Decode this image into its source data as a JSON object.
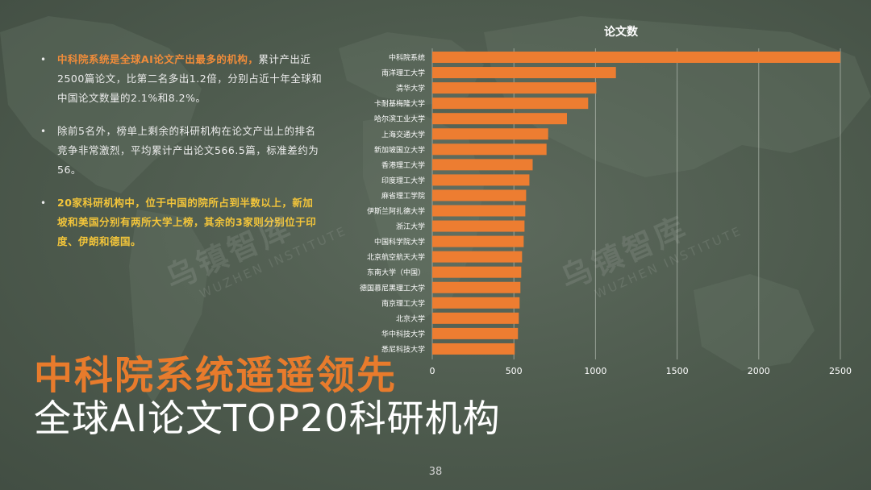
{
  "bullets": [
    {
      "highlight": "中科院系统是全球AI论文产出最多的机构，",
      "text": "累计产出近2500篇论文，比第二名多出1.2倍，分别占近十年全球和中国论文数量的2.1%和8.2%。"
    },
    {
      "highlight": "",
      "text": "除前5名外，榜单上剩余的科研机构在论文产出上的排名竞争非常激烈，平均累计产出论文566.5篇，标准差约为56。"
    },
    {
      "highlight": "20家科研机构中，位于中国的院所占到半数以上，新加坡和美国分别有两所大学上榜，其余的3家则分别位于印度、伊朗和德国。",
      "text": ""
    }
  ],
  "watermark": {
    "cn": "乌镇智库",
    "en": "WUZHEN INSTITUTE"
  },
  "headline": "中科院系统遥遥领先",
  "subtitle": "全球AI论文TOP20科研机构",
  "page_number": "38",
  "colors": {
    "accent": "#e87b2c",
    "bar": "#ed7d31",
    "highlight_text": "#f3c53a",
    "background": "#4d5a4d"
  },
  "chart_data": {
    "type": "bar",
    "orientation": "horizontal",
    "title": "论文数",
    "categories": [
      "中科院系统",
      "南洋理工大学",
      "清华大学",
      "卡耐基梅隆大学",
      "哈尔滨工业大学",
      "上海交通大学",
      "新加坡国立大学",
      "香港理工大学",
      "印度理工大学",
      "麻省理工学院",
      "伊斯兰阿扎德大学",
      "浙江大学",
      "中国科学院大学",
      "北京航空航天大学",
      "东南大学（中国）",
      "德国慕尼黑理工大学",
      "南京理工大学",
      "北京大学",
      "华中科技大学",
      "悉尼科技大学"
    ],
    "values": [
      2500,
      1125,
      1005,
      955,
      825,
      710,
      700,
      615,
      595,
      575,
      570,
      565,
      560,
      550,
      545,
      540,
      535,
      530,
      525,
      505
    ],
    "xlim": [
      0,
      2500
    ],
    "xticks": [
      0,
      500,
      1000,
      1500,
      2000,
      2500
    ],
    "xlabel": "",
    "ylabel": "",
    "grid": true,
    "legend": "none"
  }
}
